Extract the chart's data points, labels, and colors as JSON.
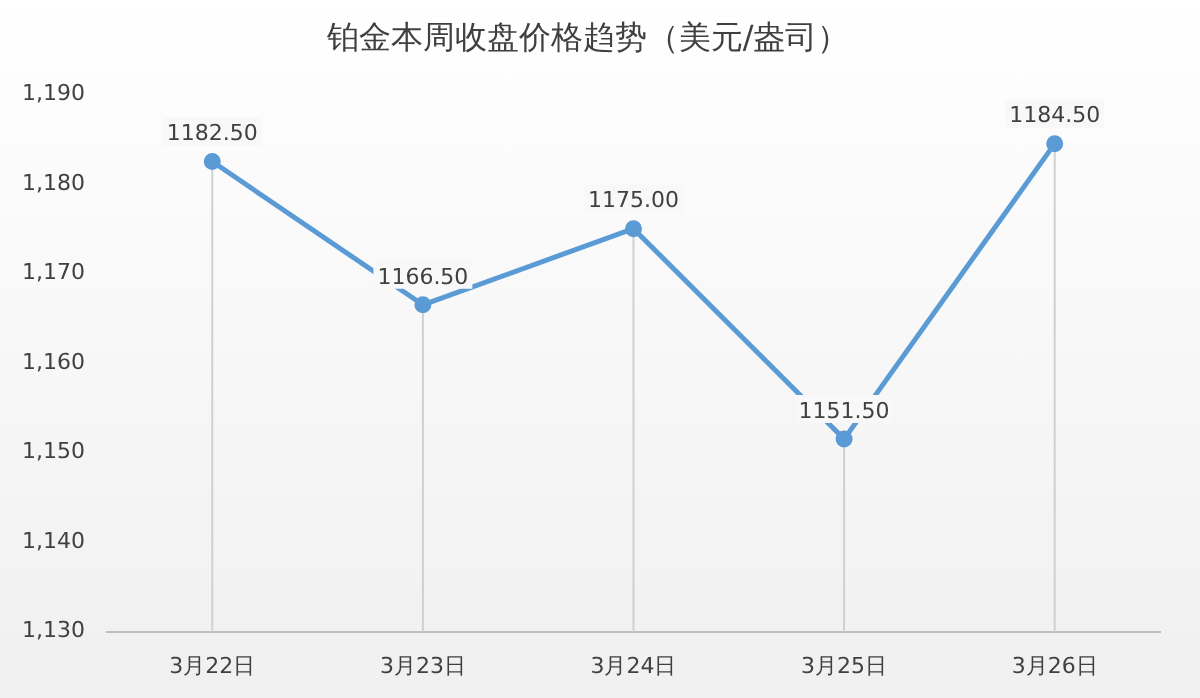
{
  "chart_data": {
    "type": "line",
    "title": "铂金本周收盘价格趋势（美元/盎司）",
    "categories": [
      "3月22日",
      "3月23日",
      "3月24日",
      "3月25日",
      "3月26日"
    ],
    "series": [
      {
        "color": "#5b9bd5",
        "values": [
          1182.5,
          1166.5,
          1175.0,
          1151.5,
          1184.5
        ]
      }
    ],
    "value_labels": [
      "1182.50",
      "1166.50",
      "1175.00",
      "1151.50",
      "1184.50"
    ],
    "ylim": [
      1130,
      1190
    ],
    "yticks": [
      {
        "value": 1130,
        "label": "1,130"
      },
      {
        "value": 1140,
        "label": "1,140"
      },
      {
        "value": 1150,
        "label": "1,150"
      },
      {
        "value": 1160,
        "label": "1,160"
      },
      {
        "value": 1170,
        "label": "1,170"
      },
      {
        "value": 1180,
        "label": "1,180"
      },
      {
        "value": 1190,
        "label": "1,190"
      }
    ],
    "grid": "x",
    "legend": false,
    "marker": "circle",
    "line_style": "solid"
  }
}
